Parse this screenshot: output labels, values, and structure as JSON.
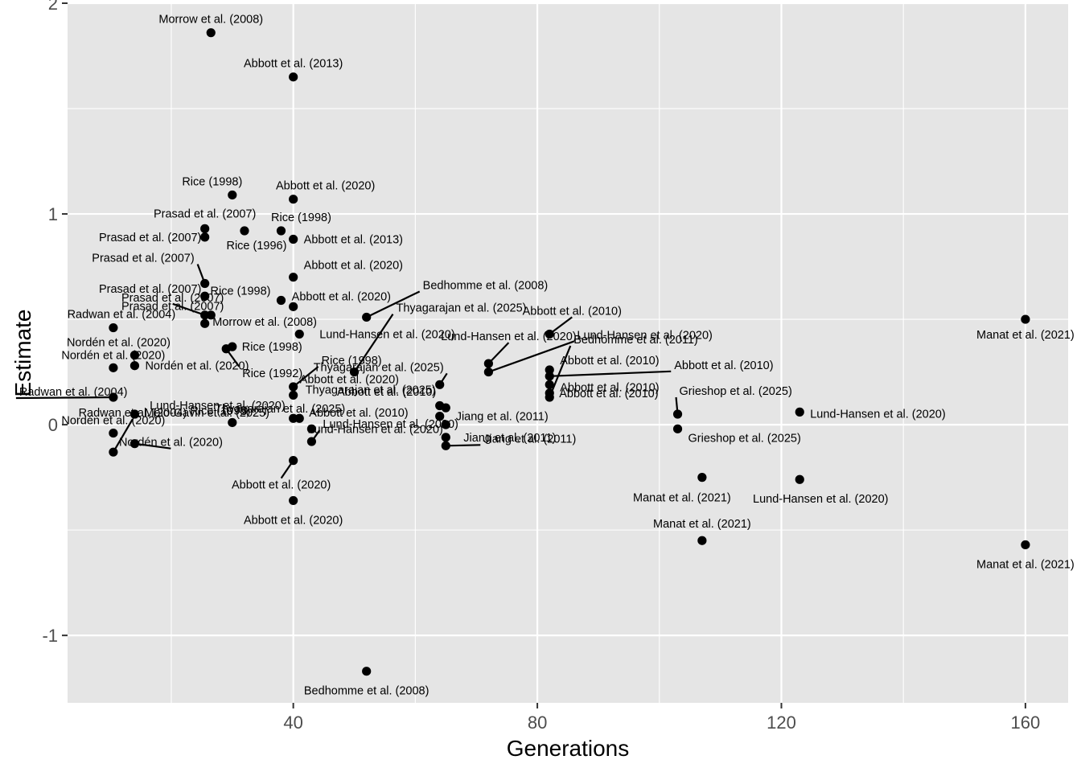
{
  "chart_data": {
    "type": "scatter",
    "title": "",
    "xlabel": "Generations",
    "ylabel": "Estimate",
    "xlim": [
      3,
      167
    ],
    "ylim": [
      -1.32,
      2.0
    ],
    "x_ticks": [
      40,
      80,
      120,
      160
    ],
    "x_tick_labels": [
      "40",
      "80",
      "120",
      "160"
    ],
    "y_ticks": [
      -1,
      0,
      1,
      2
    ],
    "y_tick_labels": [
      "-1",
      "0",
      "1",
      "2"
    ],
    "grid": true,
    "panel_color": "#e5e5e5",
    "point_color": "#000000",
    "points": [
      {
        "x": 26.5,
        "y": 1.86,
        "label": "Morrow et al. (2008)"
      },
      {
        "x": 40,
        "y": 1.65,
        "label": "Abbott et al. (2013)"
      },
      {
        "x": 30,
        "y": 1.09,
        "label": "Rice (1998)"
      },
      {
        "x": 40,
        "y": 1.07,
        "label": "Abbott et al. (2020)"
      },
      {
        "x": 25.5,
        "y": 0.93,
        "label": "Prasad et al. (2007)"
      },
      {
        "x": 38,
        "y": 0.92,
        "label": "Rice (1998)"
      },
      {
        "x": 25.5,
        "y": 0.89,
        "label": "Prasad et al. (2007)"
      },
      {
        "x": 32,
        "y": 0.92,
        "label": "Rice (1996)"
      },
      {
        "x": 40,
        "y": 0.88,
        "label": "Abbott et al. (2013)"
      },
      {
        "x": 40,
        "y": 0.7,
        "label": "Abbott et al. (2020)"
      },
      {
        "x": 25.5,
        "y": 0.67,
        "label": "Prasad et al. (2007)"
      },
      {
        "x": 25.5,
        "y": 0.61,
        "label": "Prasad et al. (2007)"
      },
      {
        "x": 25.5,
        "y": 0.52,
        "label": "Prasad et al. (2007)"
      },
      {
        "x": 38,
        "y": 0.59,
        "label": "Rice (1998)"
      },
      {
        "x": 40,
        "y": 0.56,
        "label": "Abbott et al. (2020)"
      },
      {
        "x": 52,
        "y": 0.51,
        "label": "Bedhomme et al. (2008)"
      },
      {
        "x": 10.5,
        "y": 0.46,
        "label": "Radwan et al. (2004)"
      },
      {
        "x": 26.5,
        "y": 0.52,
        "label": "Morrow et al. (2008)"
      },
      {
        "x": 25.5,
        "y": 0.48,
        "label": "Prasad et al. (2007)"
      },
      {
        "x": 41,
        "y": 0.43,
        "label": "Lund-Hansen et al. (2020)"
      },
      {
        "x": 82,
        "y": 0.43,
        "label": "Abbott et al. (2010)"
      },
      {
        "x": 72,
        "y": 0.29,
        "label": "Lund-Hansen et al. (2020)"
      },
      {
        "x": 160,
        "y": 0.5,
        "label": "Manat et al. (2021)"
      },
      {
        "x": 14,
        "y": 0.33,
        "label": "Nordén et al. (2020)"
      },
      {
        "x": 30,
        "y": 0.37,
        "label": "Rice (1998)"
      },
      {
        "x": 29,
        "y": 0.36,
        "label": "Rice (1992)"
      },
      {
        "x": 14,
        "y": 0.28,
        "label": "Nordén et al. (2020)"
      },
      {
        "x": 10.5,
        "y": 0.27,
        "label": "Nordén et al. (2020)"
      },
      {
        "x": 50,
        "y": 0.25,
        "label": "Thyagarajan et al. (2025)"
      },
      {
        "x": 72,
        "y": 0.25,
        "label": "Lund-Hansen et al. (2020)"
      },
      {
        "x": 40,
        "y": 0.18,
        "label": "Rice (1998)"
      },
      {
        "x": 82,
        "y": 0.26,
        "label": "Abbott et al. (2010)"
      },
      {
        "x": 82,
        "y": 0.23,
        "label": "Abbott et al. (2010)"
      },
      {
        "x": 64,
        "y": 0.19,
        "label": "Thyagarajan et al. (2025)"
      },
      {
        "x": 10.5,
        "y": 0.13,
        "label": "Radwan et al. (2004)"
      },
      {
        "x": 40,
        "y": 0.14,
        "label": "Abbott et al. (2020)"
      },
      {
        "x": 82,
        "y": 0.19,
        "label": "Abbott et al. (2010)"
      },
      {
        "x": 82,
        "y": 0.15,
        "label": "Abbott et al. (2010)"
      },
      {
        "x": 14,
        "y": 0.05,
        "label": "Melo-Gavin et al. (2025)"
      },
      {
        "x": 64,
        "y": 0.09,
        "label": "Thyagarajan et al. (2025)"
      },
      {
        "x": 65,
        "y": 0.08,
        "label": "Abbott et al. (2010)"
      },
      {
        "x": 82,
        "y": 0.13,
        "label": "Bedhomme et al. (2011)"
      },
      {
        "x": 103,
        "y": 0.05,
        "label": "Grieshop et al. (2025)"
      },
      {
        "x": 123,
        "y": 0.06,
        "label": "Lund-Hansen et al. (2020)"
      },
      {
        "x": 40,
        "y": 0.03,
        "label": "Lund-Hansen et al. (2020)"
      },
      {
        "x": 41,
        "y": 0.03,
        "label": "Thyagarajan et al. (2025)"
      },
      {
        "x": 64,
        "y": 0.04,
        "label": "Jiang et al. (2011)"
      },
      {
        "x": 30,
        "y": 0.01,
        "label": "Rice (1998)"
      },
      {
        "x": 65,
        "y": 0.0,
        "label": "Abbott et al. (2010)"
      },
      {
        "x": 43,
        "y": -0.02,
        "label": "Lund-Hansen et al. (2020)"
      },
      {
        "x": 103,
        "y": -0.02,
        "label": "Grieshop et al. (2025)"
      },
      {
        "x": 10.5,
        "y": -0.04,
        "label": "Nordén et al. (2020)"
      },
      {
        "x": 65,
        "y": -0.06,
        "label": "Jiang et al. (2011)"
      },
      {
        "x": 14,
        "y": -0.09,
        "label": "Nordén et al. (2020)"
      },
      {
        "x": 43,
        "y": -0.08,
        "label": "Lund-Hansen et al. (2020)"
      },
      {
        "x": 65,
        "y": -0.1,
        "label": "Jiang et al. (2011)"
      },
      {
        "x": 10.5,
        "y": -0.13,
        "label": "Radwan et al. (2004)"
      },
      {
        "x": 40,
        "y": -0.17,
        "label": "Abbott et al. (2020)"
      },
      {
        "x": 107,
        "y": -0.25,
        "label": "Manat et al. (2021)"
      },
      {
        "x": 123,
        "y": -0.26,
        "label": "Lund-Hansen et al. (2020)"
      },
      {
        "x": 40,
        "y": -0.36,
        "label": "Abbott et al. (2020)"
      },
      {
        "x": 107,
        "y": -0.55,
        "label": "Manat et al. (2021)"
      },
      {
        "x": 160,
        "y": -0.57,
        "label": "Manat et al. (2021)"
      },
      {
        "x": 52,
        "y": -1.17,
        "label": "Bedhomme et al. (2008)"
      }
    ]
  }
}
